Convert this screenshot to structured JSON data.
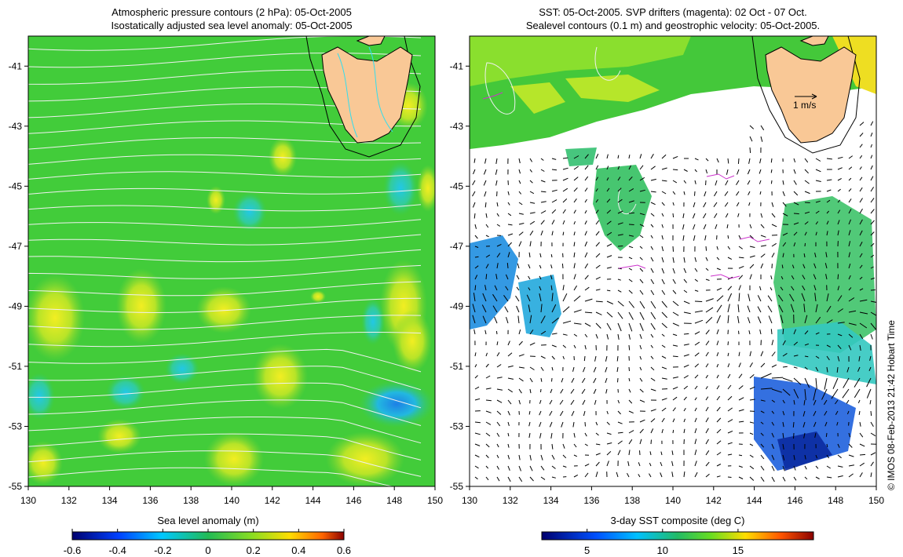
{
  "left_panel": {
    "title_line1": "Atmospheric pressure contours (2 hPa): 05-Oct-2005",
    "title_line2": "Isostatically adjusted sea level anomaly: 05-Oct-2005",
    "colorbar_label": "Sea level anomaly (m)",
    "colorbar_ticks": [
      "-0.6",
      "-0.4",
      "-0.2",
      "0",
      "0.2",
      "0.4",
      "0.6"
    ]
  },
  "right_panel": {
    "title_line1": "SST: 05-Oct-2005. SVP drifters (magenta): 02 Oct - 07 Oct.",
    "title_line2": "Sealevel contours (0.1 m) and geostrophic velocity: 05-Oct-2005.",
    "colorbar_label": "3-day SST composite (deg C)",
    "colorbar_ticks": [
      "5",
      "10",
      "15"
    ],
    "velocity_scale_label": "1 m/s"
  },
  "axes": {
    "lat_ticks": [
      "-41",
      "-43",
      "-45",
      "-47",
      "-49",
      "-51",
      "-53",
      "-55"
    ],
    "lon_ticks": [
      "130",
      "132",
      "134",
      "136",
      "138",
      "140",
      "142",
      "144",
      "146",
      "148",
      "150"
    ]
  },
  "credit": "© IMOS 08-Feb-2013 21:42 Hobart Time",
  "colors": {
    "land": "#f9c896",
    "slp_green": "#33cc33",
    "contour_white": "#f0f0f0",
    "drifter_magenta": "#cc33cc"
  },
  "map_data": {
    "lon_range": [
      130,
      150
    ],
    "lat_range": [
      -55,
      -40
    ],
    "slp_colorbar_range": [
      -0.6,
      0.6
    ],
    "sst_colorbar_range": [
      2,
      20
    ]
  }
}
